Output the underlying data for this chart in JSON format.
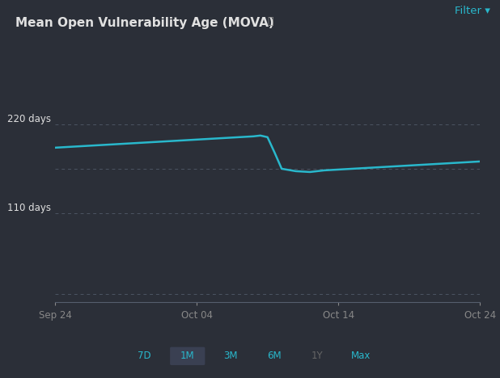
{
  "title": "Mean Open Vulnerability Age (MOVA)",
  "background_color": "#2b2f38",
  "line_color": "#29b8cc",
  "grid_color": "#555e6e",
  "text_color": "#e0e0e0",
  "muted_text_color": "#888888",
  "filter_text_color": "#29b8cc",
  "inactive_button_color": "#666666",
  "selected_button_bg": "#3a4052",
  "x_labels": [
    "Sep 24",
    "Oct 04",
    "Oct 14",
    "Oct 24"
  ],
  "x_tick_pos": [
    0,
    10,
    20,
    30
  ],
  "ytick_vals": [
    220,
    110
  ],
  "extra_gridline_y": 10,
  "ylim": [
    0,
    280
  ],
  "xlim": [
    0,
    30
  ],
  "time_buttons": [
    "7D",
    "1M",
    "3M",
    "6M",
    "1Y",
    "Max"
  ],
  "button_active": [
    true,
    true,
    true,
    true,
    false,
    true
  ],
  "selected_button": "1M",
  "line_x": [
    0,
    1,
    2,
    3,
    4,
    5,
    6,
    7,
    8,
    9,
    10,
    11,
    12,
    13,
    14,
    14.5,
    15,
    15.5,
    16,
    17,
    18,
    19,
    20,
    21,
    22,
    23,
    24,
    25,
    26,
    27,
    28,
    29,
    30
  ],
  "line_y": [
    191,
    192,
    193,
    194,
    195,
    196,
    197,
    198,
    199,
    200,
    201,
    202,
    203,
    204,
    205,
    206,
    204,
    185,
    165,
    162,
    161,
    163,
    164,
    165,
    166,
    167,
    168,
    169,
    170,
    171,
    172,
    173,
    174
  ]
}
